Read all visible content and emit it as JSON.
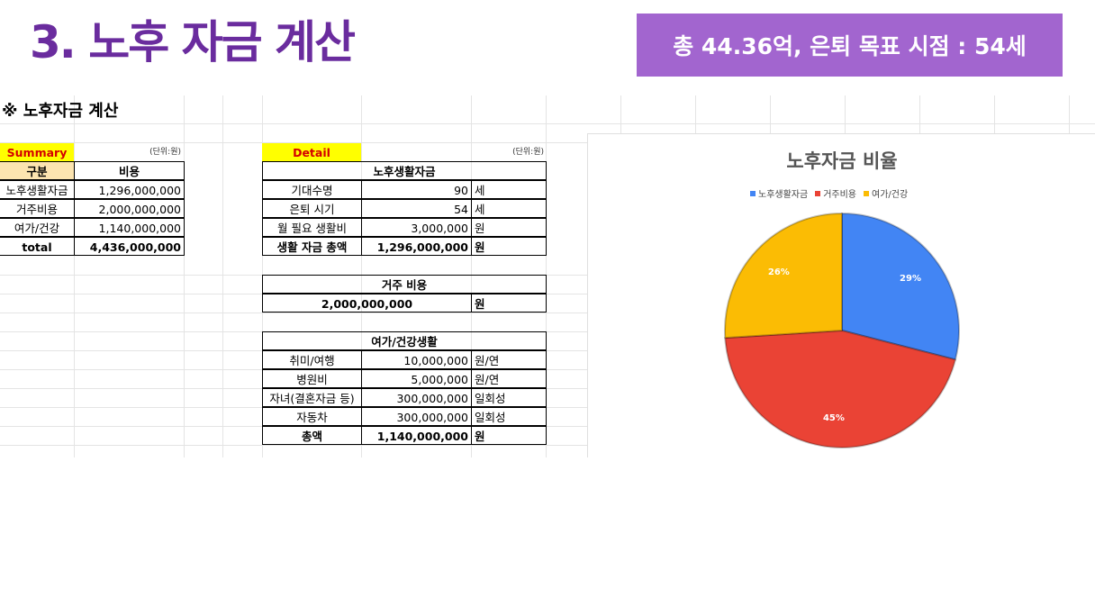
{
  "title": "3. 노후 자금 계산",
  "banner": "총 44.36억, 은퇴 목표 시점 : 54세",
  "sheet_heading": "※ 노후자금 계산",
  "summary": {
    "label": "Summary",
    "unit_note": "(단위:원)",
    "col_category": "구분",
    "col_cost": "비용",
    "rows": [
      {
        "name": "노후생활자금",
        "value": "1,296,000,000"
      },
      {
        "name": "거주비용",
        "value": "2,000,000,000"
      },
      {
        "name": "여가/건강",
        "value": "1,140,000,000"
      }
    ],
    "total_label": "total",
    "total_value": "4,436,000,000"
  },
  "detail": {
    "label": "Detail",
    "unit_note": "(단위:원)",
    "living": {
      "header": "노후생활자금",
      "rows": [
        {
          "name": "기대수명",
          "value": "90",
          "unit": "세"
        },
        {
          "name": "은퇴 시기",
          "value": "54",
          "unit": "세"
        },
        {
          "name": "월 필요 생활비",
          "value": "3,000,000",
          "unit": "원"
        }
      ],
      "total_label": "생활 자금 총액",
      "total_value": "1,296,000,000",
      "total_unit": "원"
    },
    "housing": {
      "header": "거주 비용",
      "value": "2,000,000,000",
      "unit": "원"
    },
    "leisure": {
      "header": "여가/건강생활",
      "rows": [
        {
          "name": "취미/여행",
          "value": "10,000,000",
          "unit": "원/연"
        },
        {
          "name": "병원비",
          "value": "5,000,000",
          "unit": "원/연"
        },
        {
          "name": "자녀(결혼자금 등)",
          "value": "300,000,000",
          "unit": "일회성"
        },
        {
          "name": "자동차",
          "value": "300,000,000",
          "unit": "일회성"
        }
      ],
      "total_label": "총액",
      "total_value": "1,140,000,000",
      "total_unit": "원"
    }
  },
  "chart_data": {
    "type": "pie",
    "title": "노후자금 비율",
    "legend_position": "top",
    "categories": [
      "노후생활자금",
      "거주비용",
      "여가/건강"
    ],
    "values": [
      29,
      45,
      26
    ],
    "labels": [
      "29%",
      "45%",
      "26%"
    ],
    "colors": [
      "#4285f4",
      "#ea4335",
      "#fbbc04"
    ]
  }
}
